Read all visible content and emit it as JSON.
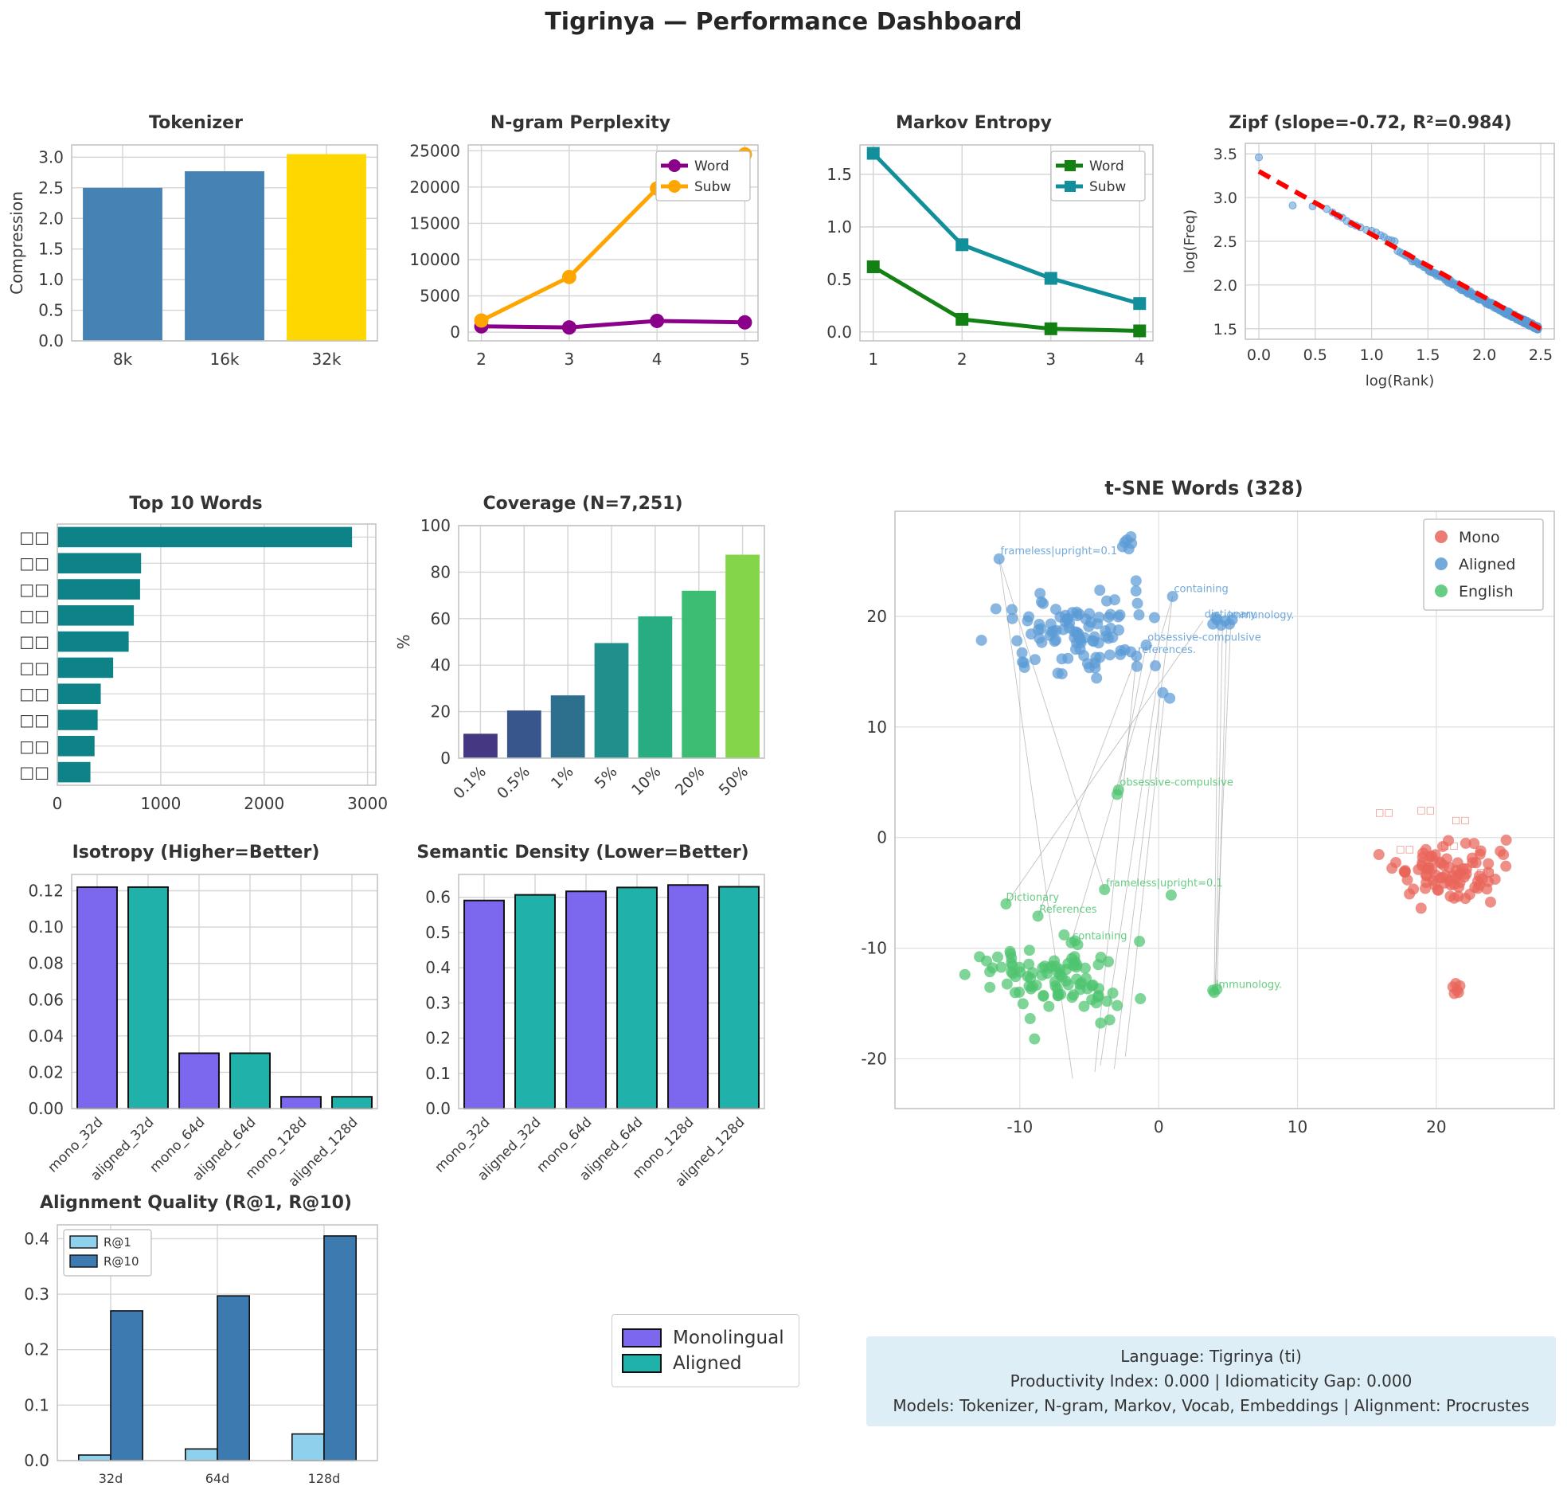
{
  "page_title": "Tigrinya — Performance Dashboard",
  "info_box": {
    "line1": "Language: Tigrinya (ti)",
    "line2": "Productivity Index: 0.000  |  Idiomaticity Gap: 0.000",
    "line3": "Models: Tokenizer, N-gram, Markov, Vocab, Embeddings  |  Alignment: Procrustes"
  },
  "standalone_legend": {
    "items": [
      {
        "label": "Monolingual",
        "color": "#7b68ee"
      },
      {
        "label": "Aligned",
        "color": "#20b2aa"
      }
    ]
  },
  "chart_data": {
    "tokenizer": {
      "type": "bar",
      "title": "Tokenizer",
      "categories": [
        "8k",
        "16k",
        "32k"
      ],
      "values": [
        2.5,
        2.77,
        3.05
      ],
      "colors": [
        "#4682B4",
        "#4682B4",
        "#FFD700"
      ],
      "ylabel": "Compression",
      "ylim": [
        0,
        3.2
      ],
      "yticks": [
        0.0,
        0.5,
        1.0,
        1.5,
        2.0,
        2.5,
        3.0
      ],
      "yfmt": 1
    },
    "ngram": {
      "type": "line",
      "title": "N-gram Perplexity",
      "x": [
        2,
        3,
        4,
        5
      ],
      "xticks": [
        2,
        3,
        4,
        5
      ],
      "xlim": [
        1.85,
        5.15
      ],
      "ylim": [
        -1200,
        25800
      ],
      "yticks": [
        0,
        5000,
        10000,
        15000,
        20000,
        25000
      ],
      "yfmt": 0,
      "legend_pos": "top-right",
      "series": [
        {
          "name": "Word",
          "color": "#8B008B",
          "marker": "circle",
          "values": [
            800,
            650,
            1550,
            1350
          ]
        },
        {
          "name": "Subw",
          "color": "#FFA500",
          "marker": "circle",
          "values": [
            1600,
            7600,
            19800,
            24500
          ]
        }
      ]
    },
    "markov": {
      "type": "line",
      "title": "Markov Entropy",
      "x": [
        1,
        2,
        3,
        4
      ],
      "xticks": [
        1,
        2,
        3,
        4
      ],
      "xlim": [
        0.85,
        4.15
      ],
      "ylim": [
        -0.085,
        1.78
      ],
      "yticks": [
        0.0,
        0.5,
        1.0,
        1.5
      ],
      "yfmt": 1,
      "legend_pos": "top-right",
      "series": [
        {
          "name": "Word",
          "color": "#138013",
          "marker": "square",
          "values": [
            0.62,
            0.12,
            0.03,
            0.01
          ]
        },
        {
          "name": "Subw",
          "color": "#11909b",
          "marker": "square",
          "values": [
            1.7,
            0.83,
            0.51,
            0.27
          ]
        }
      ]
    },
    "zipf": {
      "type": "zipf",
      "title": "Zipf (slope=-0.72, R²=0.984)",
      "xlabel": "log(Rank)",
      "ylabel": "log(Freq)",
      "xlim": [
        -0.12,
        2.62
      ],
      "ylim": [
        1.38,
        3.62
      ],
      "xticks": [
        0.0,
        0.5,
        1.0,
        1.5,
        2.0,
        2.5
      ],
      "yticks": [
        1.5,
        2.0,
        2.5,
        3.0,
        3.5
      ],
      "xfmt": 1,
      "yfmt": 1,
      "point_color": "#5b9bd5",
      "trend_color": "#ff0000",
      "trend": [
        [
          0.0,
          3.3
        ],
        [
          2.5,
          1.5
        ]
      ],
      "curve": {
        "a": 3.46,
        "b": -0.95,
        "c": 0.065
      },
      "n_points": 300,
      "noise": 0.022,
      "seed": 11,
      "anchors": [
        [
          0.0,
          3.46
        ],
        [
          0.3,
          2.91
        ],
        [
          0.477,
          2.9
        ],
        [
          0.602,
          2.87
        ],
        [
          0.653,
          2.83
        ],
        [
          0.7,
          2.79
        ],
        [
          0.74,
          2.77
        ],
        [
          0.78,
          2.73
        ],
        [
          0.82,
          2.7
        ],
        [
          0.86,
          2.68
        ],
        [
          0.9,
          2.66
        ],
        [
          0.954,
          2.63
        ],
        [
          1.0,
          2.62
        ],
        [
          1.04,
          2.6
        ],
        [
          1.08,
          2.57
        ],
        [
          1.11,
          2.55
        ],
        [
          1.146,
          2.52
        ],
        [
          1.176,
          2.51
        ],
        [
          1.204,
          2.5
        ]
      ]
    },
    "top_words": {
      "type": "hbar",
      "title": "Top 10 Words",
      "labels": [
        "□□",
        "□□",
        "□□",
        "□□",
        "□□",
        "□□",
        "□□",
        "□□",
        "□□",
        "□□"
      ],
      "values": [
        2850,
        810,
        800,
        740,
        690,
        540,
        420,
        390,
        360,
        320
      ],
      "color": "#0d8287",
      "xlim": [
        0,
        3080
      ],
      "xticks": [
        0,
        1000,
        2000,
        3000
      ]
    },
    "coverage": {
      "type": "bar",
      "title": "Coverage (N=7,251)",
      "categories": [
        "0.1%",
        "0.5%",
        "1%",
        "5%",
        "10%",
        "20%",
        "50%"
      ],
      "values": [
        10.5,
        20.5,
        27,
        49.5,
        61,
        72,
        87.5
      ],
      "colors": [
        "#453781",
        "#39568c",
        "#2d708e",
        "#21908c",
        "#27ad81",
        "#3dbc74",
        "#85d54a"
      ],
      "ylabel": "%",
      "ylim": [
        0,
        100
      ],
      "yticks": [
        0,
        20,
        40,
        60,
        80,
        100
      ],
      "yfmt": 0,
      "rotate_x": 45
    },
    "tsne": {
      "type": "tsne",
      "title": "t-SNE Words (328)",
      "xlim": [
        -19,
        28.5
      ],
      "ylim": [
        -24.5,
        29.5
      ],
      "xticks": [
        -10,
        0,
        10,
        20
      ],
      "yticks": [
        -20,
        -10,
        0,
        10,
        20
      ],
      "legend": [
        {
          "label": "Mono",
          "color": "#e9655a"
        },
        {
          "label": "Aligned",
          "color": "#5b9bd5"
        },
        {
          "label": "English",
          "color": "#4ec46f"
        }
      ],
      "clusters": [
        {
          "name": "aligned",
          "color": "#5b9bd5",
          "seed": 3,
          "count": 100,
          "cx": -6.0,
          "cy": 18.5,
          "sx": 5.5,
          "sy": 4.0
        },
        {
          "name": "english",
          "color": "#4ec46f",
          "seed": 5,
          "count": 95,
          "cx": -7.5,
          "cy": -12.5,
          "sx": 6.0,
          "sy": 4.5
        },
        {
          "name": "mono",
          "color": "#e9655a",
          "seed": 9,
          "count": 88,
          "cx": 20.5,
          "cy": -3.2,
          "sx": 4.5,
          "sy": 3.2
        }
      ],
      "extra_points": {
        "aligned": [
          [
            -11.5,
            25.2
          ],
          [
            1.0,
            21.8
          ],
          [
            -0.9,
            17.4
          ],
          [
            -1.6,
            16.4
          ],
          [
            3.9,
            19.3
          ],
          [
            4.2,
            19.7
          ],
          [
            4.5,
            19.2
          ],
          [
            4.8,
            19.6
          ],
          [
            5.1,
            19.3
          ],
          [
            5.3,
            19.7
          ],
          [
            4.1,
            19.9
          ],
          [
            -2.6,
            26.3
          ],
          [
            -2.3,
            26.9
          ],
          [
            -2.0,
            27.2
          ],
          [
            -2.45,
            26.7
          ],
          [
            -2.15,
            26.1
          ],
          [
            -1.95,
            26.6
          ],
          [
            0.3,
            13.1
          ],
          [
            0.8,
            12.6
          ]
        ],
        "english": [
          [
            -2.9,
            4.3
          ],
          [
            -3.0,
            3.9
          ],
          [
            -3.9,
            -4.7
          ],
          [
            -11.0,
            -6.0
          ],
          [
            -8.7,
            -7.1
          ],
          [
            -6.3,
            -9.5
          ],
          [
            4.0,
            -14.0
          ],
          [
            4.2,
            -13.7
          ],
          [
            3.9,
            -13.8
          ],
          [
            0.9,
            -5.2
          ]
        ],
        "mono": [
          [
            21.2,
            -13.5
          ],
          [
            21.5,
            -13.8
          ],
          [
            21.3,
            -14.1
          ],
          [
            21.7,
            -13.4
          ],
          [
            21.6,
            -14.0
          ],
          [
            21.4,
            -13.2
          ]
        ]
      },
      "connectors": [
        [
          [
            -11.5,
            25.2
          ],
          [
            -3.9,
            -4.7
          ]
        ],
        [
          [
            -11.5,
            25.2
          ],
          [
            -6.2,
            -21.8
          ]
        ],
        [
          [
            1.0,
            21.8
          ],
          [
            -6.3,
            -9.5
          ]
        ],
        [
          [
            1.0,
            21.8
          ],
          [
            -3.2,
            -20.9
          ]
        ],
        [
          [
            4.3,
            19.4
          ],
          [
            4.0,
            -14.0
          ]
        ],
        [
          [
            4.6,
            19.6
          ],
          [
            4.1,
            -13.7
          ]
        ],
        [
          [
            4.9,
            19.3
          ],
          [
            4.2,
            -14.1
          ]
        ],
        [
          [
            5.2,
            19.5
          ],
          [
            4.05,
            -13.9
          ]
        ],
        [
          [
            -0.9,
            17.4
          ],
          [
            -2.9,
            4.3
          ]
        ],
        [
          [
            -1.6,
            16.4
          ],
          [
            -8.7,
            -7.1
          ]
        ],
        [
          [
            -1.6,
            16.4
          ],
          [
            -4.6,
            -21.2
          ]
        ],
        [
          [
            -0.2,
            13.2
          ],
          [
            -4.2,
            -20.6
          ]
        ],
        [
          [
            0.4,
            12.6
          ],
          [
            -2.4,
            -19.8
          ]
        ],
        [
          [
            3.2,
            19.6
          ],
          [
            -11.0,
            -6.0
          ]
        ]
      ],
      "annotations": [
        {
          "x": -11.4,
          "y": 25.6,
          "t": "frameless|upright=0.1",
          "c": "#5b9bd5"
        },
        {
          "x": 1.1,
          "y": 22.2,
          "t": "containing",
          "c": "#5b9bd5"
        },
        {
          "x": 3.3,
          "y": 19.9,
          "t": "dictionary",
          "c": "#5b9bd5"
        },
        {
          "x": 5.0,
          "y": 19.8,
          "t": "immunology.",
          "c": "#5b9bd5"
        },
        {
          "x": -0.8,
          "y": 17.8,
          "t": "obsessive-compulsive",
          "c": "#5b9bd5"
        },
        {
          "x": -1.5,
          "y": 16.7,
          "t": "references.",
          "c": "#5b9bd5"
        },
        {
          "x": -2.8,
          "y": 4.7,
          "t": "obsessive-compulsive",
          "c": "#4ec46f"
        },
        {
          "x": -3.8,
          "y": -4.4,
          "t": "frameless|upright=0.1",
          "c": "#4ec46f"
        },
        {
          "x": -11.0,
          "y": -5.7,
          "t": "Dictionary",
          "c": "#4ec46f"
        },
        {
          "x": -8.6,
          "y": -6.8,
          "t": "References",
          "c": "#4ec46f"
        },
        {
          "x": -6.2,
          "y": -9.2,
          "t": "containing",
          "c": "#4ec46f"
        },
        {
          "x": 4.1,
          "y": -13.6,
          "t": "Immunology.",
          "c": "#4ec46f"
        }
      ],
      "red_marks": [
        {
          "x": 15.6,
          "y": 2.0,
          "t": "□□"
        },
        {
          "x": 18.6,
          "y": 2.2,
          "t": "□□"
        },
        {
          "x": 21.1,
          "y": 1.3,
          "t": "□□"
        },
        {
          "x": 17.1,
          "y": -1.3,
          "t": "□□"
        },
        {
          "x": 20.3,
          "y": -1.0,
          "t": "□□"
        },
        {
          "x": 22.9,
          "y": -3.4,
          "t": "□□"
        }
      ]
    },
    "isotropy": {
      "type": "bar",
      "title": "Isotropy (Higher=Better)",
      "categories": [
        "mono_32d",
        "aligned_32d",
        "mono_64d",
        "aligned_64d",
        "mono_128d",
        "aligned_128d"
      ],
      "values": [
        0.122,
        0.122,
        0.0305,
        0.0305,
        0.0065,
        0.0065
      ],
      "colors": [
        "#7b68ee",
        "#20b2aa",
        "#7b68ee",
        "#20b2aa",
        "#7b68ee",
        "#20b2aa"
      ],
      "edge": "#111111",
      "ylim": [
        0,
        0.129
      ],
      "yticks": [
        0.0,
        0.02,
        0.04,
        0.06,
        0.08,
        0.1,
        0.12
      ],
      "yfmt": 2,
      "rotate_x": 45,
      "xfs": 17
    },
    "density": {
      "type": "bar",
      "title": "Semantic Density (Lower=Better)",
      "categories": [
        "mono_32d",
        "aligned_32d",
        "mono_64d",
        "aligned_64d",
        "mono_128d",
        "aligned_128d"
      ],
      "values": [
        0.591,
        0.607,
        0.617,
        0.628,
        0.635,
        0.63
      ],
      "colors": [
        "#7b68ee",
        "#20b2aa",
        "#7b68ee",
        "#20b2aa",
        "#7b68ee",
        "#20b2aa"
      ],
      "edge": "#111111",
      "ylim": [
        0,
        0.665
      ],
      "yticks": [
        0.0,
        0.1,
        0.2,
        0.3,
        0.4,
        0.5,
        0.6
      ],
      "yfmt": 1,
      "rotate_x": 45,
      "xfs": 17
    },
    "alignment": {
      "type": "groupbar",
      "title": "Alignment Quality (R@1, R@10)",
      "groups": [
        "32d",
        "64d",
        "128d"
      ],
      "series": [
        {
          "name": "R@1",
          "color": "#8fd0ec",
          "values": [
            0.01,
            0.021,
            0.048
          ]
        },
        {
          "name": "R@10",
          "color": "#3d7ab0",
          "values": [
            0.27,
            0.297,
            0.405
          ]
        }
      ],
      "edge": "#111111",
      "ylim": [
        0,
        0.425
      ],
      "yticks": [
        0.0,
        0.1,
        0.2,
        0.3,
        0.4
      ],
      "yfmt": 1,
      "legend_pos": "top-left"
    }
  }
}
